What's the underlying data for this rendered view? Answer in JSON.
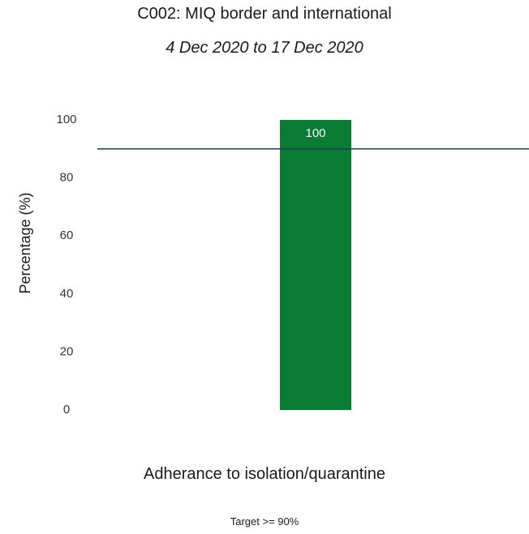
{
  "chart_data": {
    "type": "bar",
    "title": "C002: MIQ border and international",
    "subtitle": "4 Dec 2020 to 17 Dec 2020",
    "categories": [
      "Adherance to isolation/quarantine"
    ],
    "values": [
      100
    ],
    "data_labels": [
      "100"
    ],
    "ylabel": "Percentage (%)",
    "xlabel": "",
    "ylim": [
      0,
      100
    ],
    "yticks": [
      0,
      20,
      40,
      60,
      80,
      100
    ],
    "target": 90,
    "target_note": "Target >= 90%",
    "grid": false,
    "bar_color": "#0a7c33",
    "target_line_color": "#1f3a5f"
  }
}
